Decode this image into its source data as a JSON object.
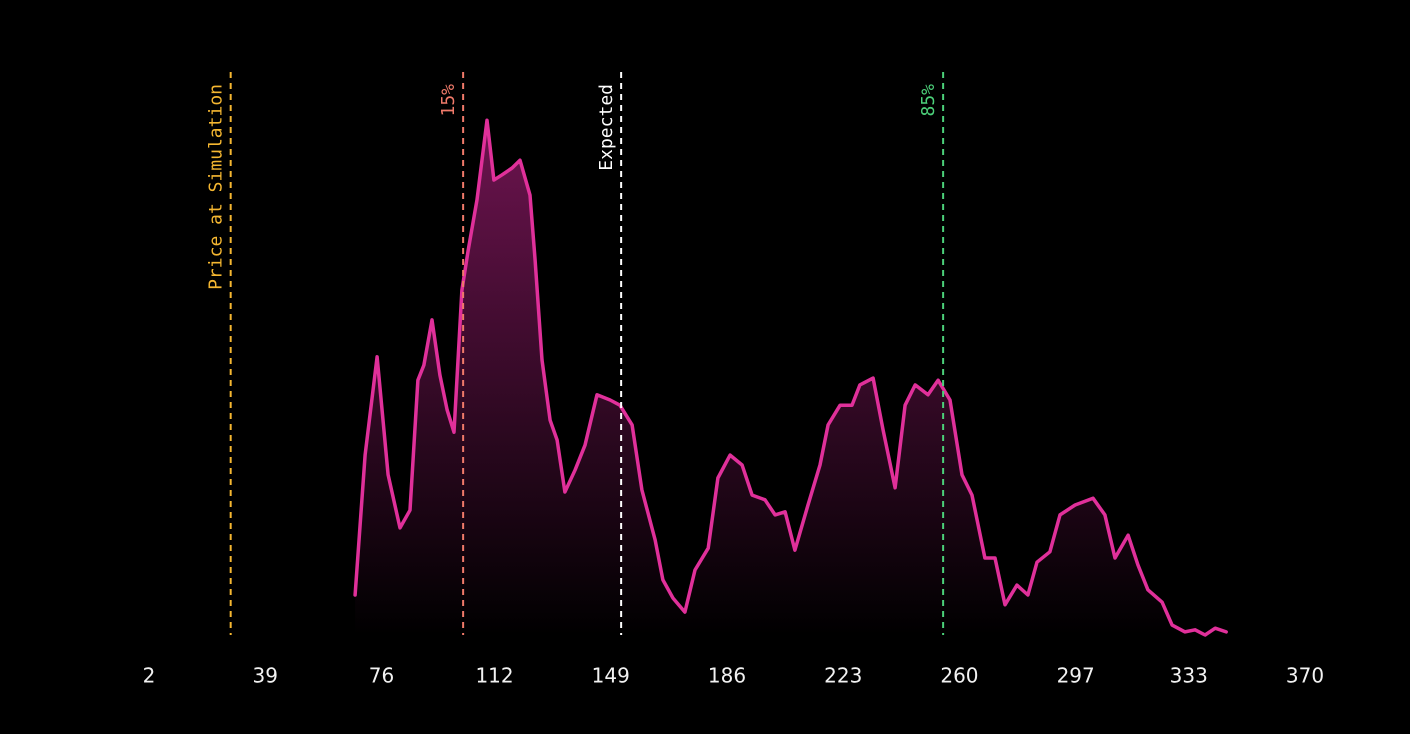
{
  "chart_data": {
    "type": "area",
    "color": "#e0309a",
    "fill_color": "#6e1450",
    "x": [
      67.6,
      70.8,
      74.6,
      78.1,
      81.9,
      85.1,
      87.6,
      89.5,
      92.1,
      94.6,
      96.9,
      99.1,
      101.6,
      103.6,
      106.4,
      109.6,
      111.8,
      114.4,
      117.6,
      120.1,
      123.3,
      124.9,
      127.1,
      129.7,
      131.9,
      134.4,
      137.6,
      140.8,
      144.6,
      148.8,
      151.9,
      155.8,
      158.9,
      163.1,
      165.6,
      168.8,
      172.6,
      175.8,
      180.0,
      183.1,
      187.0,
      190.8,
      194.0,
      198.1,
      201.3,
      204.5,
      207.6,
      211.8,
      215.6,
      218.2,
      222.0,
      225.8,
      228.3,
      232.5,
      235.7,
      239.5,
      242.7,
      245.9,
      250.0,
      253.2,
      257.0,
      260.8,
      264.0,
      268.1,
      271.3,
      274.5,
      278.3,
      281.8,
      284.7,
      288.8,
      292.0,
      296.8,
      302.5,
      306.3,
      309.5,
      313.7,
      316.8,
      320.0,
      324.5,
      327.7,
      331.8,
      335.0,
      338.2,
      341.4,
      344.9
    ],
    "values": [
      7.7,
      34.6,
      53.5,
      30.8,
      20.6,
      24.0,
      49.0,
      51.9,
      60.6,
      50.0,
      43.3,
      39.0,
      66.3,
      74.0,
      83.7,
      99.0,
      87.5,
      88.5,
      89.8,
      91.3,
      84.6,
      72.1,
      52.9,
      41.3,
      37.5,
      27.5,
      31.7,
      36.5,
      46.2,
      45.2,
      44.2,
      40.4,
      27.9,
      18.3,
      10.6,
      7.1,
      4.4,
      12.5,
      16.7,
      30.2,
      34.6,
      32.7,
      26.9,
      26.0,
      23.1,
      23.7,
      16.3,
      25.0,
      32.7,
      40.4,
      44.2,
      44.2,
      48.1,
      49.4,
      39.4,
      28.3,
      44.2,
      48.1,
      46.2,
      49.0,
      45.2,
      30.8,
      26.9,
      14.8,
      14.8,
      5.8,
      9.6,
      7.7,
      14.0,
      16.0,
      23.1,
      25.0,
      26.3,
      23.1,
      14.8,
      19.2,
      13.5,
      8.7,
      6.3,
      1.9,
      0.6,
      1.0,
      0,
      1.3,
      0.6
    ],
    "xlim": [
      2,
      370
    ],
    "xticks": [
      2,
      39,
      76,
      112,
      149,
      186,
      223,
      260,
      297,
      333,
      370
    ],
    "ylim": [
      0,
      100
    ],
    "reference_lines": [
      {
        "label": "Price at Simulation",
        "value": 28,
        "color": "#f5b731"
      },
      {
        "label": "15%",
        "value": 102,
        "color": "#f07a6a"
      },
      {
        "label": "Expected",
        "value": 152.3,
        "color": "#ffffff"
      },
      {
        "label": "85%",
        "value": 254.8,
        "color": "#4cd17a"
      }
    ]
  }
}
